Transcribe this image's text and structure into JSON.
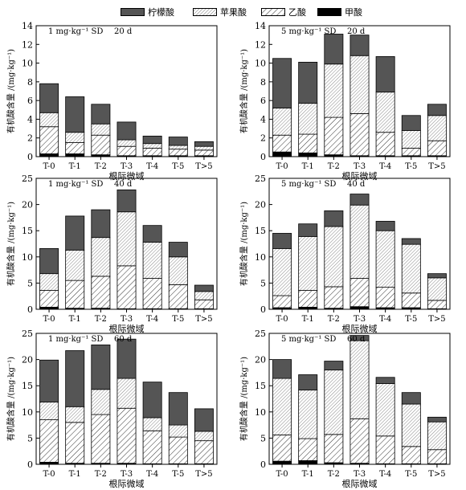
{
  "legend": {
    "items": [
      {
        "label": "柠檬酸",
        "pattern": "dark"
      },
      {
        "label": "苹果酸",
        "pattern": "light"
      },
      {
        "label": "乙酸",
        "pattern": "hatch"
      },
      {
        "label": "甲酸",
        "pattern": "black"
      }
    ]
  },
  "colors": {
    "citric": "#555555",
    "malic": "#e6e6e6",
    "acetic": "#ffffff",
    "formic": "#000000"
  },
  "chart_data": [
    {
      "type": "bar",
      "stacked": true,
      "annotation_left": "1 mg·kg⁻¹ SD",
      "annotation_right": "20 d",
      "xlabel": "根际微域",
      "ylabel": "有机酸含量 /(mg·kg⁻¹)",
      "ylim": [
        0,
        14
      ],
      "yticks": [
        0,
        2,
        4,
        6,
        8,
        10,
        12,
        14
      ],
      "categories": [
        "T-0",
        "T-1",
        "T-2",
        "T-3",
        "T-4",
        "T-5",
        "T>5"
      ],
      "series": [
        {
          "name": "甲酸",
          "values": [
            0.3,
            0.3,
            0.2,
            0.1,
            0.1,
            0.1,
            0.1
          ]
        },
        {
          "name": "乙酸",
          "values": [
            2.9,
            1.2,
            2.1,
            1.0,
            0.8,
            0.7,
            0.6
          ]
        },
        {
          "name": "苹果酸",
          "values": [
            1.5,
            1.1,
            1.2,
            0.7,
            0.5,
            0.4,
            0.4
          ]
        },
        {
          "name": "柠檬酸",
          "values": [
            3.1,
            3.8,
            2.1,
            1.9,
            0.8,
            0.9,
            0.5
          ]
        }
      ]
    },
    {
      "type": "bar",
      "stacked": true,
      "annotation_left": "5 mg·kg⁻¹ SD",
      "annotation_right": "20 d",
      "xlabel": "根际微域",
      "ylabel": "有机酸含量 /(mg·kg⁻¹)",
      "ylim": [
        0,
        14
      ],
      "yticks": [
        0,
        2,
        4,
        6,
        8,
        10,
        12,
        14
      ],
      "categories": [
        "T-0",
        "T-1",
        "T-2",
        "T-3",
        "T-4",
        "T-5",
        "T>5"
      ],
      "series": [
        {
          "name": "甲酸",
          "values": [
            0.5,
            0.4,
            0.2,
            0.1,
            0.1,
            0.1,
            0.1
          ]
        },
        {
          "name": "乙酸",
          "values": [
            1.8,
            2.0,
            4.0,
            4.5,
            2.5,
            0.8,
            1.6
          ]
        },
        {
          "name": "苹果酸",
          "values": [
            2.9,
            3.3,
            5.7,
            6.2,
            4.3,
            1.9,
            2.7
          ]
        },
        {
          "name": "柠檬酸",
          "values": [
            5.3,
            4.4,
            3.2,
            2.2,
            3.8,
            1.6,
            1.2
          ]
        }
      ]
    },
    {
      "type": "bar",
      "stacked": true,
      "annotation_left": "1 mg·kg⁻¹ SD",
      "annotation_right": "40 d",
      "xlabel": "根际微域",
      "ylabel": "有机酸含量 /(mg·kg⁻¹)",
      "ylim": [
        0,
        25
      ],
      "yticks": [
        0,
        5,
        10,
        15,
        20,
        25
      ],
      "categories": [
        "T-0",
        "T-1",
        "T-2",
        "T-3",
        "T-4",
        "T-5",
        "T>5"
      ],
      "series": [
        {
          "name": "甲酸",
          "values": [
            0.4,
            0.2,
            0.2,
            0.1,
            0.1,
            0.1,
            0.1
          ]
        },
        {
          "name": "乙酸",
          "values": [
            3.2,
            5.3,
            6.1,
            8.2,
            5.8,
            4.6,
            1.7
          ]
        },
        {
          "name": "苹果酸",
          "values": [
            3.2,
            5.8,
            7.4,
            10.3,
            6.9,
            5.3,
            1.6
          ]
        },
        {
          "name": "柠檬酸",
          "values": [
            4.8,
            6.5,
            5.3,
            4.2,
            3.2,
            2.8,
            1.2
          ]
        }
      ]
    },
    {
      "type": "bar",
      "stacked": true,
      "annotation_left": "5 mg·kg⁻¹ SD",
      "annotation_right": "40 d",
      "xlabel": "根际微域",
      "ylabel": "有机酸含量 /(mg·kg⁻¹)",
      "ylim": [
        0,
        25
      ],
      "yticks": [
        0,
        5,
        10,
        15,
        20,
        25
      ],
      "categories": [
        "T-0",
        "T-1",
        "T-2",
        "T-3",
        "T-4",
        "T-5",
        "T>5"
      ],
      "series": [
        {
          "name": "甲酸",
          "values": [
            0.3,
            0.4,
            0.2,
            0.5,
            0.3,
            0.3,
            0.1
          ]
        },
        {
          "name": "乙酸",
          "values": [
            2.3,
            3.2,
            4.1,
            5.4,
            3.9,
            2.8,
            1.6
          ]
        },
        {
          "name": "苹果酸",
          "values": [
            9.0,
            10.3,
            11.5,
            14.0,
            10.8,
            9.3,
            4.3
          ]
        },
        {
          "name": "柠檬酸",
          "values": [
            2.9,
            2.4,
            3.0,
            2.1,
            1.8,
            1.1,
            0.8
          ]
        }
      ]
    },
    {
      "type": "bar",
      "stacked": true,
      "annotation_left": "1 mg·kg⁻¹ SD",
      "annotation_right": "60 d",
      "xlabel": "根际微域",
      "ylabel": "有机酸含量 /(mg·kg⁻¹)",
      "ylim": [
        0,
        25
      ],
      "yticks": [
        0,
        5,
        10,
        15,
        20,
        25
      ],
      "categories": [
        "T-0",
        "T-1",
        "T-2",
        "T-3",
        "T-4",
        "T-5",
        "T>5"
      ],
      "series": [
        {
          "name": "甲酸",
          "values": [
            0.4,
            0.2,
            0.2,
            0.2,
            0.1,
            0.1,
            0.1
          ]
        },
        {
          "name": "乙酸",
          "values": [
            8.1,
            7.8,
            9.3,
            10.5,
            6.3,
            5.1,
            4.4
          ]
        },
        {
          "name": "苹果酸",
          "values": [
            3.4,
            3.0,
            4.8,
            5.7,
            2.5,
            2.3,
            1.8
          ]
        },
        {
          "name": "柠檬酸",
          "values": [
            8.0,
            10.7,
            8.5,
            7.5,
            6.8,
            6.2,
            4.3
          ]
        }
      ]
    },
    {
      "type": "bar",
      "stacked": true,
      "annotation_left": "5 mg·kg⁻¹ SD",
      "annotation_right": "60 d",
      "xlabel": "根际微域",
      "ylabel": "有机酸含量 /(mg·kg⁻¹)",
      "ylim": [
        0,
        25
      ],
      "yticks": [
        0,
        5,
        10,
        15,
        20,
        25
      ],
      "categories": [
        "T-0",
        "T-1",
        "T-2",
        "T-3",
        "T-4",
        "T-5",
        "T>5"
      ],
      "series": [
        {
          "name": "甲酸",
          "values": [
            0.6,
            0.7,
            0.3,
            0.2,
            0.1,
            0.1,
            0.1
          ]
        },
        {
          "name": "乙酸",
          "values": [
            5.0,
            4.2,
            5.4,
            8.5,
            5.3,
            3.3,
            2.7
          ]
        },
        {
          "name": "苹果酸",
          "values": [
            10.8,
            9.3,
            12.3,
            14.9,
            10.0,
            8.1,
            5.3
          ]
        },
        {
          "name": "柠檬酸",
          "values": [
            3.6,
            2.9,
            1.7,
            1.0,
            1.2,
            2.2,
            0.9
          ]
        }
      ]
    }
  ]
}
